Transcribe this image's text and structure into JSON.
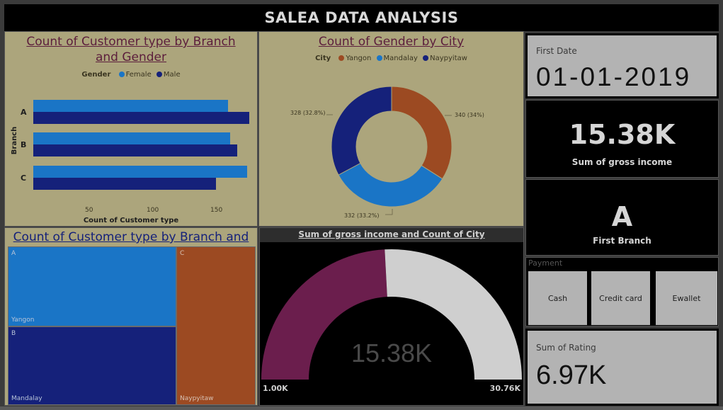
{
  "page_title": "SALEA DATA ANALYSIS",
  "colors": {
    "female": "#1a75c6",
    "male": "#15217a",
    "yangon": "#9c4a22",
    "mandalay": "#1a75c6",
    "naypyitaw": "#15217a",
    "gauge_fill": "#6b1e4d",
    "gauge_rest": "#cfcfcf"
  },
  "customer_type_chart": {
    "title": "Count of Customer type by Branch and Gender",
    "legend_title": "Gender",
    "legend": [
      "Female",
      "Male"
    ],
    "ylabel": "Branch",
    "xlabel": "Count of Customer type",
    "x_ticks": [
      "50",
      "100",
      "150"
    ]
  },
  "gender_city_chart": {
    "title": "Count of Gender by City",
    "legend_title": "City",
    "legend": [
      "Yangon",
      "Mandalay",
      "Naypyitaw"
    ],
    "slice_labels": [
      "340 (34%)",
      "332 (33.2%)",
      "328 (32.8%)"
    ]
  },
  "treemap": {
    "title": "Count of Customer type by Branch and City",
    "cells": [
      {
        "branch": "A",
        "city": "Yangon"
      },
      {
        "branch": "B",
        "city": "Mandalay"
      },
      {
        "branch": "C",
        "city": "Naypyitaw"
      }
    ]
  },
  "gauge": {
    "title": "Sum of gross income and Count of City",
    "value_label": "15.38K",
    "min_label": "1.00K",
    "max_label": "30.76K"
  },
  "kpis": {
    "first_date_label": "First Date",
    "first_date_value": "01-01-2019",
    "gross_income_value": "15.38K",
    "gross_income_label": "Sum of gross income",
    "first_branch_value": "A",
    "first_branch_label": "First Branch",
    "rating_label": "Sum of Rating",
    "rating_value": "6.97K"
  },
  "payment": {
    "title": "Payment",
    "options": [
      "Cash",
      "Credit card",
      "Ewallet"
    ]
  },
  "chart_data": [
    {
      "type": "bar",
      "orientation": "horizontal",
      "title": "Count of Customer type by Branch and Gender",
      "categories": [
        "A",
        "B",
        "C"
      ],
      "series": [
        {
          "name": "Female",
          "values": [
            161,
            163,
            177
          ]
        },
        {
          "name": "Male",
          "values": [
            179,
            169,
            151
          ]
        }
      ],
      "xlabel": "Count of Customer type",
      "ylabel": "Branch",
      "xlim": [
        0,
        180
      ],
      "legend": "top"
    },
    {
      "type": "pie",
      "title": "Count of Gender by City",
      "categories": [
        "Yangon",
        "Mandalay",
        "Naypyitaw"
      ],
      "values": [
        340,
        332,
        328
      ],
      "donut": true,
      "legend": "top"
    },
    {
      "type": "treemap",
      "title": "Count of Customer type by Branch and City",
      "categories": [
        "A / Yangon",
        "B / Mandalay",
        "C / Naypyitaw"
      ],
      "values": [
        340,
        332,
        328
      ]
    },
    {
      "type": "gauge",
      "title": "Sum of gross income and Count of City",
      "value": 15380,
      "min": 1000,
      "max": 30760
    }
  ]
}
